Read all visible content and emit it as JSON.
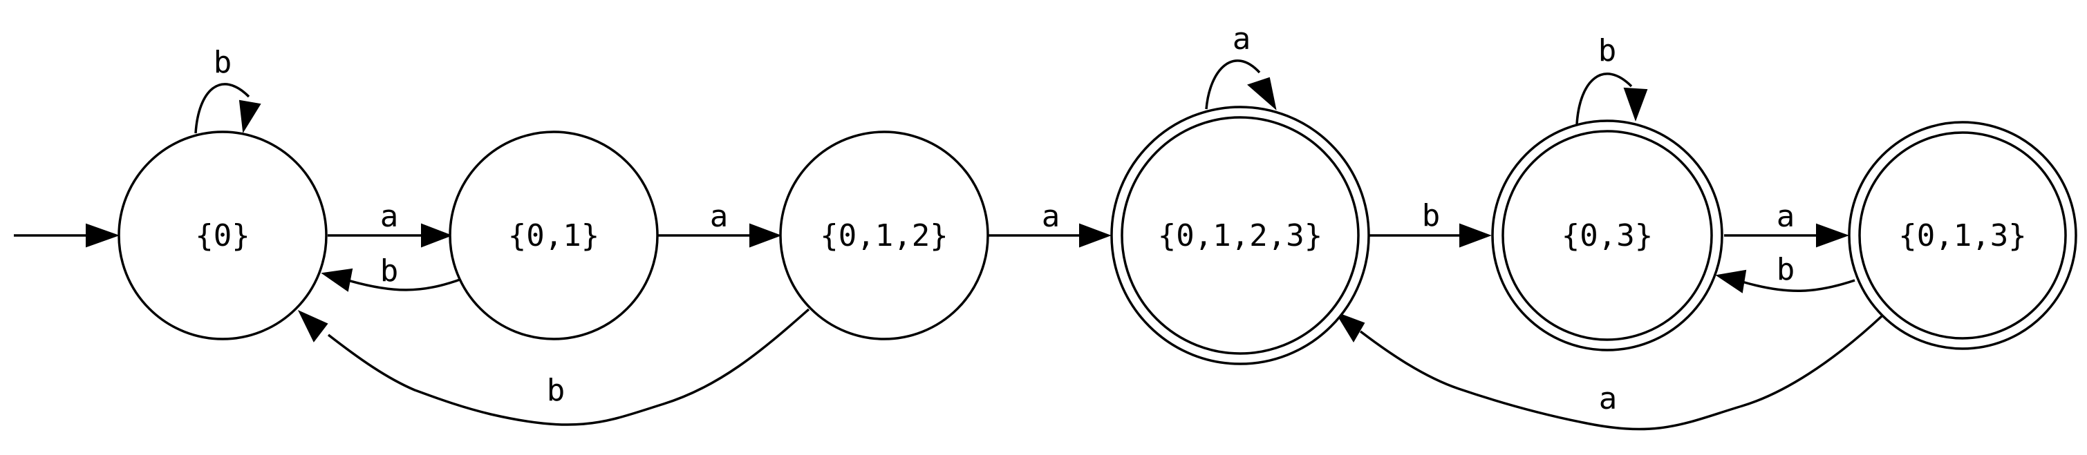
{
  "states": [
    {
      "id": "s0",
      "label": "{0}",
      "accepting": false,
      "initial": true
    },
    {
      "id": "s01",
      "label": "{0,1}",
      "accepting": false,
      "initial": false
    },
    {
      "id": "s012",
      "label": "{0,1,2}",
      "accepting": false,
      "initial": false
    },
    {
      "id": "s0123",
      "label": "{0,1,2,3}",
      "accepting": true,
      "initial": false
    },
    {
      "id": "s03",
      "label": "{0,3}",
      "accepting": true,
      "initial": false
    },
    {
      "id": "s013",
      "label": "{0,1,3}",
      "accepting": true,
      "initial": false
    }
  ],
  "transitions": [
    {
      "from": "{0}",
      "to": "{0}",
      "symbol": "b"
    },
    {
      "from": "{0}",
      "to": "{0,1}",
      "symbol": "a"
    },
    {
      "from": "{0,1}",
      "to": "{0}",
      "symbol": "b"
    },
    {
      "from": "{0,1}",
      "to": "{0,1,2}",
      "symbol": "a"
    },
    {
      "from": "{0,1,2}",
      "to": "{0}",
      "symbol": "b"
    },
    {
      "from": "{0,1,2}",
      "to": "{0,1,2,3}",
      "symbol": "a"
    },
    {
      "from": "{0,1,2,3}",
      "to": "{0,1,2,3}",
      "symbol": "a"
    },
    {
      "from": "{0,1,2,3}",
      "to": "{0,3}",
      "symbol": "b"
    },
    {
      "from": "{0,3}",
      "to": "{0,3}",
      "symbol": "b"
    },
    {
      "from": "{0,3}",
      "to": "{0,1,3}",
      "symbol": "a"
    },
    {
      "from": "{0,1,3}",
      "to": "{0,3}",
      "symbol": "b"
    },
    {
      "from": "{0,1,3}",
      "to": "{0,1,2,3}",
      "symbol": "a"
    }
  ]
}
